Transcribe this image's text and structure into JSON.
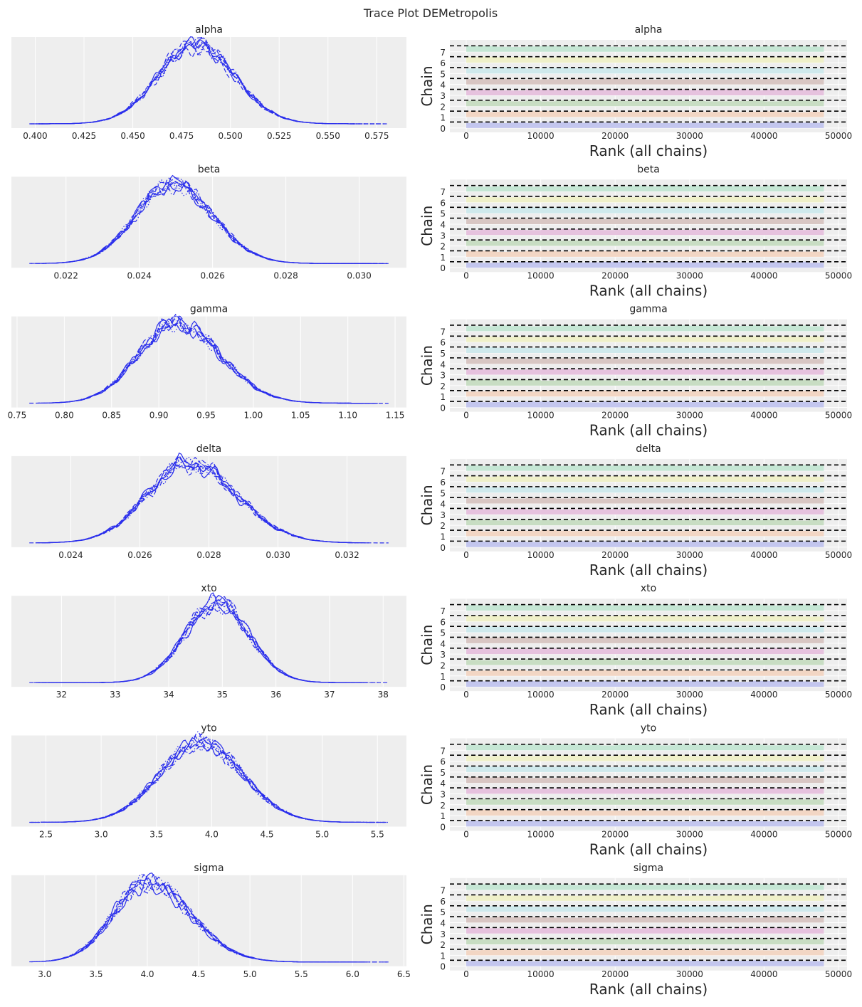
{
  "title": "Trace Plot DEMetropolis",
  "chart_data": {
    "type": "trace-rank",
    "title": "Trace Plot DEMetropolis",
    "line_color": "#2a2eec",
    "axes_bg": "#eeeeee",
    "chain_linestyles": [
      "solid",
      "dashed",
      "dotted",
      "dashdot",
      "solid",
      "dashed",
      "dotted",
      "dashdot"
    ],
    "rank": {
      "xlabel": "Rank (all chains)",
      "ylabel": "Chain",
      "xticks": [
        0,
        10000,
        20000,
        30000,
        40000,
        50000
      ],
      "max_rank": 48000,
      "chains": [
        0,
        1,
        2,
        3,
        4,
        5,
        6,
        7
      ],
      "chain_colors": [
        "#c3c6ee",
        "#f2d6c4",
        "#c8ddc3",
        "#e6c2de",
        "#d8c6c3",
        "#cfe9ec",
        "#eff0c9",
        "#c5e6d4"
      ],
      "reference_line": "dashed"
    },
    "variables": [
      {
        "name": "alpha",
        "xticks": [
          "0.400",
          "0.425",
          "0.450",
          "0.475",
          "0.500",
          "0.525",
          "0.550",
          "0.575"
        ],
        "range": [
          0.397,
          0.581
        ],
        "mean": 0.482,
        "sd_left": 0.019,
        "sd_right": 0.02
      },
      {
        "name": "beta",
        "xticks": [
          "0.022",
          "0.024",
          "0.026",
          "0.028",
          "0.030"
        ],
        "range": [
          0.021,
          0.0308
        ],
        "mean": 0.0249,
        "sd_left": 0.001,
        "sd_right": 0.0011
      },
      {
        "name": "gamma",
        "xticks": [
          "0.75",
          "0.80",
          "0.85",
          "0.90",
          "0.95",
          "1.00",
          "1.05",
          "1.10",
          "1.15"
        ],
        "range": [
          0.763,
          1.143
        ],
        "mean": 0.918,
        "sd_left": 0.04,
        "sd_right": 0.047
      },
      {
        "name": "delta",
        "xticks": [
          "0.024",
          "0.026",
          "0.028",
          "0.030",
          "0.032"
        ],
        "range": [
          0.0228,
          0.0332
        ],
        "mean": 0.0274,
        "sd_left": 0.0012,
        "sd_right": 0.0014
      },
      {
        "name": "xto",
        "xticks": [
          "32",
          "33",
          "34",
          "35",
          "36",
          "37",
          "38"
        ],
        "range": [
          31.4,
          38.1
        ],
        "mean": 34.9,
        "sd_left": 0.6,
        "sd_right": 0.6
      },
      {
        "name": "yto",
        "xticks": [
          "2.5",
          "3.0",
          "3.5",
          "4.0",
          "4.5",
          "5.0",
          "5.5"
        ],
        "range": [
          2.35,
          5.6
        ],
        "mean": 3.9,
        "sd_left": 0.37,
        "sd_right": 0.38
      },
      {
        "name": "sigma",
        "xticks": [
          "3.0",
          "3.5",
          "4.0",
          "4.5",
          "5.0",
          "5.5",
          "6.0",
          "6.5"
        ],
        "range": [
          2.85,
          6.35
        ],
        "mean": 4.0,
        "sd_left": 0.33,
        "sd_right": 0.42
      }
    ]
  }
}
